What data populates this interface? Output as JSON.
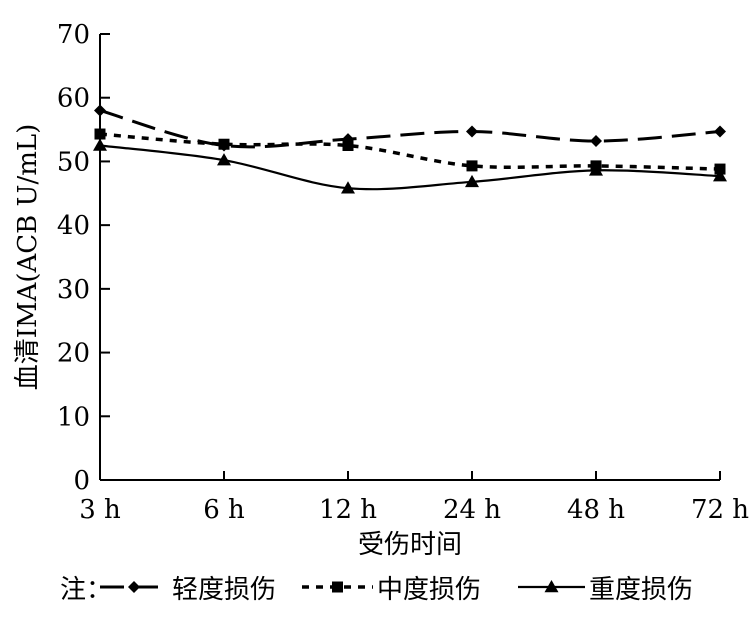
{
  "chart_data": {
    "type": "line",
    "categories": [
      "3 h",
      "6 h",
      "12 h",
      "24 h",
      "48 h",
      "72 h"
    ],
    "xlabel": "受伤时间",
    "ylabel": "血清IMA(ACB U/mL)",
    "ylim": [
      0,
      70
    ],
    "yticks": [
      "0",
      "10",
      "20",
      "30",
      "40",
      "50",
      "60",
      "70"
    ],
    "grid": false,
    "legend_prefix": "注：",
    "legend_position": "bottom",
    "series": [
      {
        "name": "轻度损伤",
        "values": [
          58,
          52.5,
          53.5,
          54.7,
          53.2,
          54.7
        ],
        "marker": "diamond",
        "dash": "long-dash"
      },
      {
        "name": "中度损伤",
        "values": [
          54.3,
          52.7,
          52.5,
          49.3,
          49.3,
          48.8
        ],
        "marker": "square",
        "dash": "short-dash"
      },
      {
        "name": "重度损伤",
        "values": [
          52.5,
          50.2,
          45.8,
          46.8,
          48.6,
          47.7
        ],
        "marker": "triangle",
        "dash": "solid"
      }
    ]
  }
}
